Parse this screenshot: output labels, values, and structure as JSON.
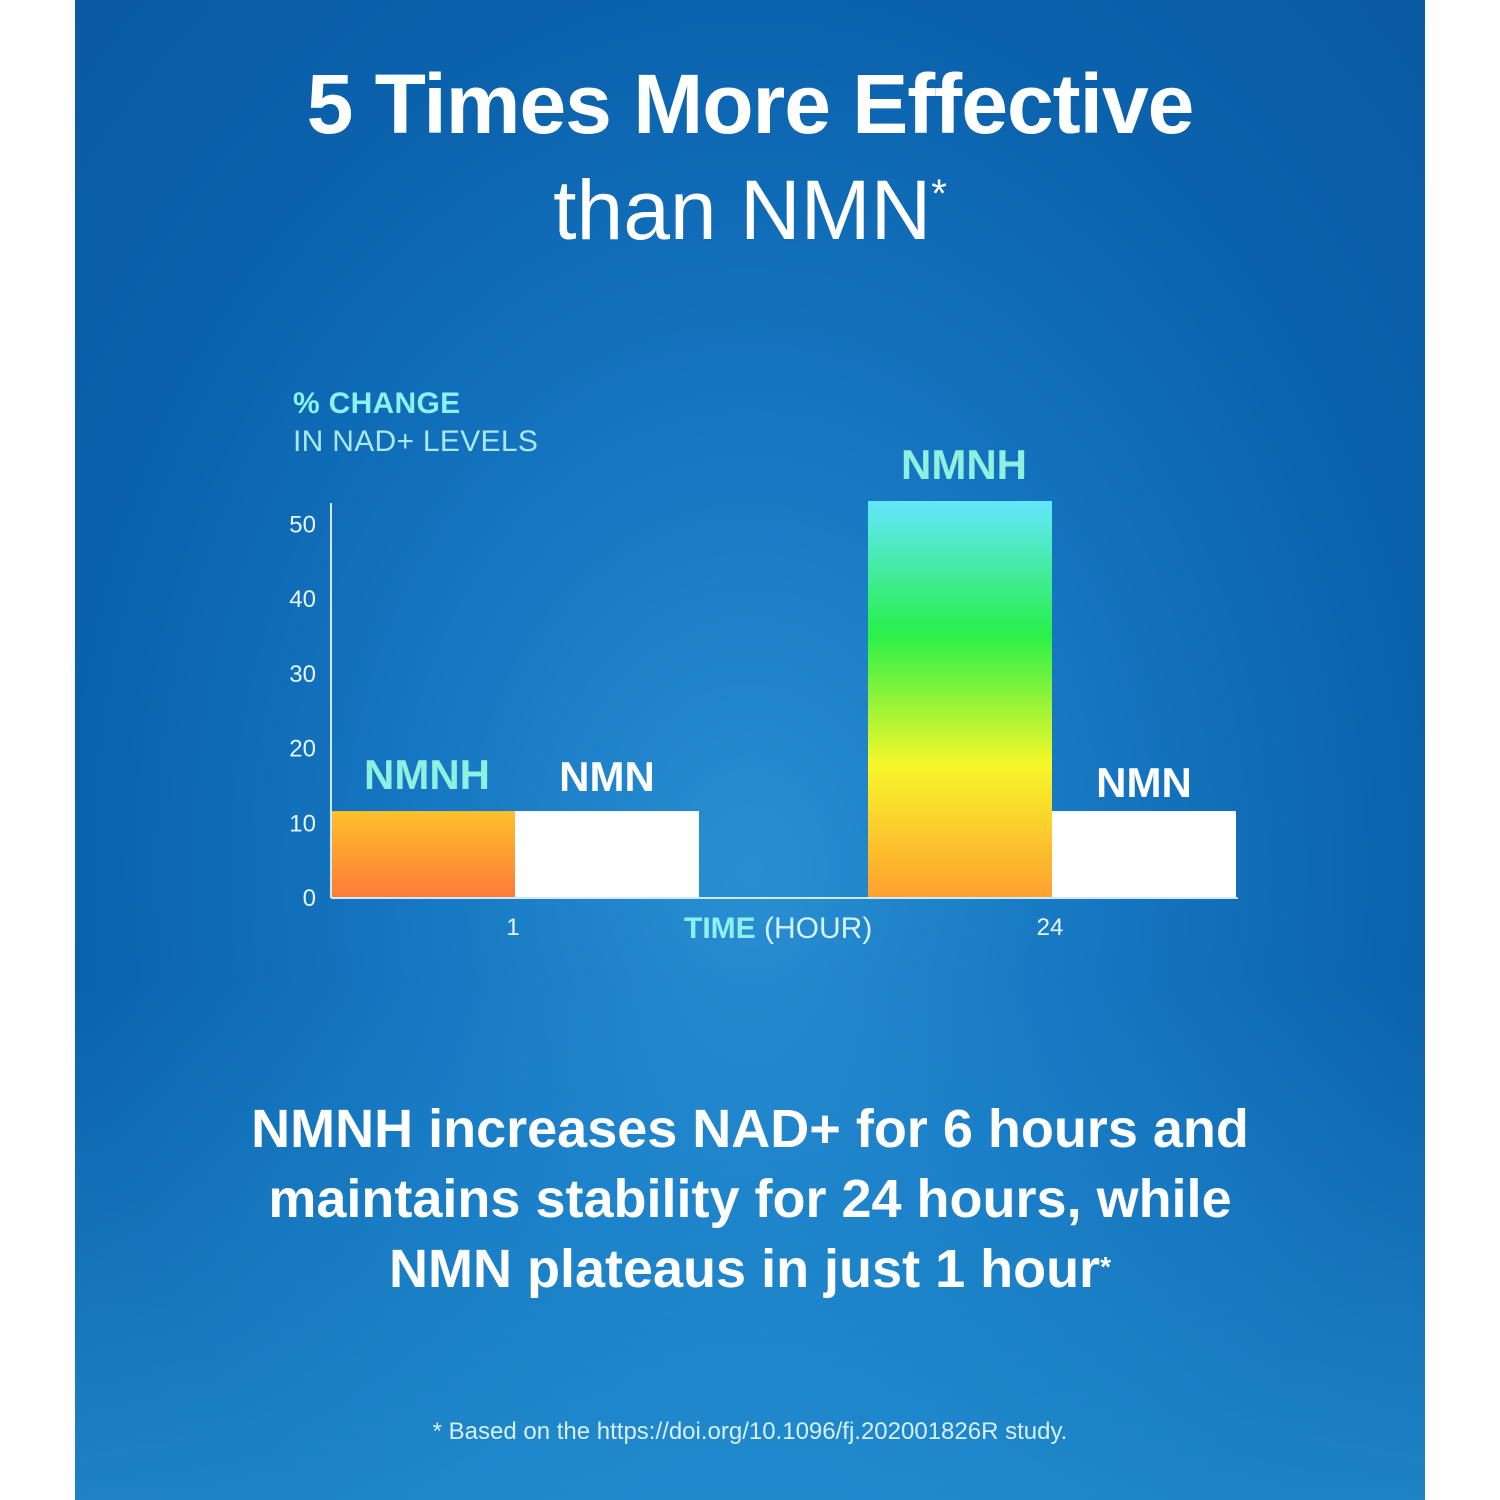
{
  "header": {
    "title_line1": "5 Times More Effective",
    "title_line2": "than NMN",
    "title_mark": "*"
  },
  "chart_data": {
    "type": "bar",
    "ylabel_line1": "% CHANGE",
    "ylabel_line2": "IN NAD+ LEVELS",
    "xlabel_bold": "TIME",
    "xlabel_light": "(HOUR)",
    "categories": [
      "1",
      "24"
    ],
    "series": [
      {
        "name": "NMNH",
        "values": [
          11.5,
          53
        ]
      },
      {
        "name": "NMN",
        "values": [
          11.5,
          11.5
        ]
      }
    ],
    "ylim": [
      0,
      53
    ],
    "yticks": [
      0,
      10,
      20,
      30,
      40,
      50
    ],
    "grid": false,
    "colors": {
      "nmnh_1h": [
        "#ffc02a",
        "#ff7a3a"
      ],
      "nmnh_24h": [
        "#63e6ff",
        "#28f04a",
        "#f7f72a",
        "#ffa030"
      ],
      "nmn": "#ffffff",
      "nmnh_label": "#8ff0e0",
      "nmn_label": "#ffffff",
      "axis": "#cfe9f7",
      "tick_text": "#e8f6fc"
    }
  },
  "body": {
    "line1": "NMNH increases NAD+ for 6 hours and",
    "line2": "maintains stability for 24 hours, while",
    "line3": "NMN plateaus in just 1 hour",
    "mark": "*"
  },
  "footnote": "* Based on the  https://doi.org/10.1096/fj.202001826R study."
}
